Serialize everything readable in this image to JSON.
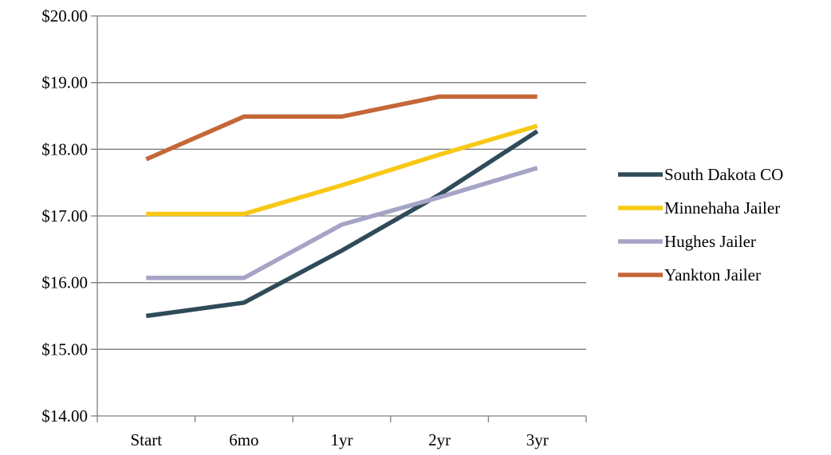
{
  "chart_data": {
    "type": "line",
    "categories": [
      "Start",
      "6mo",
      "1yr",
      "2yr",
      "3yr"
    ],
    "ylim": [
      14,
      20
    ],
    "y_ticks": [
      {
        "value": 14,
        "label": "$14.00"
      },
      {
        "value": 15,
        "label": "$15.00"
      },
      {
        "value": 16,
        "label": "$16.00"
      },
      {
        "value": 17,
        "label": "$17.00"
      },
      {
        "value": 18,
        "label": "$18.00"
      },
      {
        "value": 19,
        "label": "$19.00"
      },
      {
        "value": 20,
        "label": "$20.00"
      }
    ],
    "grid": "horizontal",
    "legend_position": "right",
    "series": [
      {
        "name": "South Dakota CO",
        "color": "#2f4b5a",
        "values": [
          15.5,
          15.7,
          16.48,
          17.32,
          18.27
        ]
      },
      {
        "name": "Minnehaha Jailer",
        "color": "#f8c815",
        "values": [
          17.03,
          17.03,
          17.46,
          17.92,
          18.35
        ]
      },
      {
        "name": "Hughes Jailer",
        "color": "#a6a4c6",
        "values": [
          16.07,
          16.07,
          16.87,
          17.28,
          17.72
        ]
      },
      {
        "name": "Yankton Jailer",
        "color": "#c56738",
        "values": [
          17.85,
          18.49,
          18.49,
          18.79,
          18.79
        ]
      }
    ]
  }
}
